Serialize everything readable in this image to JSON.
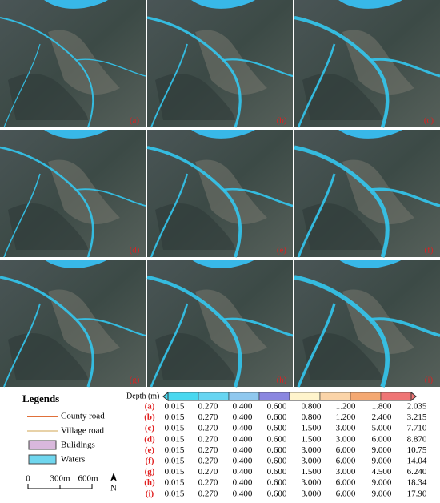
{
  "panels": [
    {
      "label": "(a)"
    },
    {
      "label": "(b)"
    },
    {
      "label": "(c)"
    },
    {
      "label": "(d)"
    },
    {
      "label": "(e)"
    },
    {
      "label": "(f)"
    },
    {
      "label": "(g)"
    },
    {
      "label": "(h)"
    },
    {
      "label": "(i)"
    }
  ],
  "legend": {
    "title": "Legends",
    "items": [
      "County road",
      "Village road",
      "Bulidings",
      "Waters"
    ],
    "scale": [
      "0",
      "300m",
      "600m"
    ],
    "north": "N"
  },
  "depth_table": {
    "title": "Depth (m)",
    "rows": [
      {
        "label": "(a)",
        "values": [
          "0.015",
          "0.270",
          "0.400",
          "0.600",
          "0.800",
          "1.200",
          "1.800",
          "2.035"
        ]
      },
      {
        "label": "(b)",
        "values": [
          "0.015",
          "0.270",
          "0.400",
          "0.600",
          "0.800",
          "1.200",
          "2.400",
          "3.215"
        ]
      },
      {
        "label": "(c)",
        "values": [
          "0.015",
          "0.270",
          "0.400",
          "0.600",
          "1.500",
          "3.000",
          "5.000",
          "7.710"
        ]
      },
      {
        "label": "(d)",
        "values": [
          "0.015",
          "0.270",
          "0.400",
          "0.600",
          "1.500",
          "3.000",
          "6.000",
          "8.870"
        ]
      },
      {
        "label": "(e)",
        "values": [
          "0.015",
          "0.270",
          "0.400",
          "0.600",
          "3.000",
          "6.000",
          "9.000",
          "10.75"
        ]
      },
      {
        "label": "(f)",
        "values": [
          "0.015",
          "0.270",
          "0.400",
          "0.600",
          "3.000",
          "6.000",
          "9.000",
          "14.04"
        ]
      },
      {
        "label": "(g)",
        "values": [
          "0.015",
          "0.270",
          "0.400",
          "0.600",
          "1.500",
          "3.000",
          "4.500",
          "6.240"
        ]
      },
      {
        "label": "(h)",
        "values": [
          "0.015",
          "0.270",
          "0.400",
          "0.600",
          "3.000",
          "6.000",
          "9.000",
          "18.34"
        ]
      },
      {
        "label": "(i)",
        "values": [
          "0.015",
          "0.270",
          "0.400",
          "0.600",
          "3.000",
          "6.000",
          "9.000",
          "17.90"
        ]
      }
    ]
  }
}
